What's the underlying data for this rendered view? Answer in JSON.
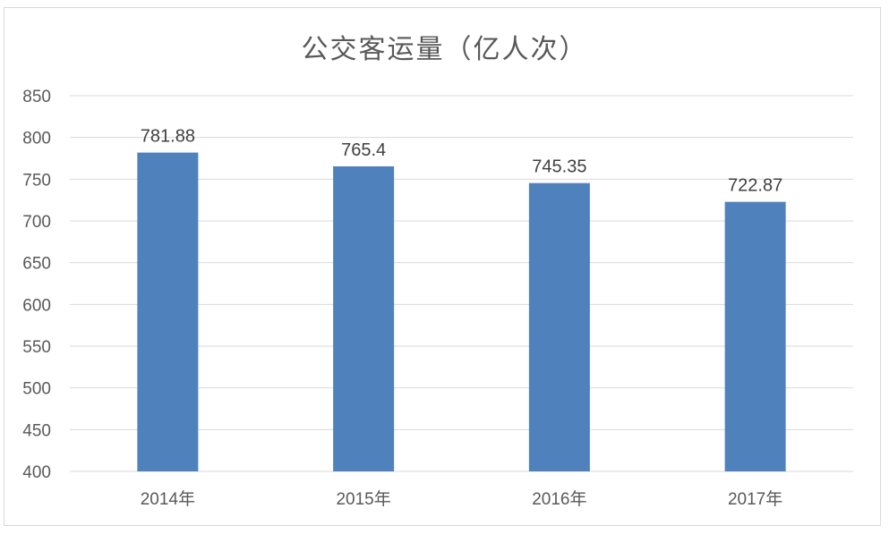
{
  "chart_data": {
    "type": "bar",
    "title": "公交客运量（亿人次）",
    "categories": [
      "2014年",
      "2015年",
      "2016年",
      "2017年"
    ],
    "values": [
      781.88,
      765.4,
      745.35,
      722.87
    ],
    "data_labels": [
      "781.88",
      "765.4",
      "745.35",
      "722.87"
    ],
    "ylim": [
      400,
      850
    ],
    "yticks": [
      400,
      450,
      500,
      550,
      600,
      650,
      700,
      750,
      800,
      850
    ],
    "grid": true,
    "legend": "none",
    "bar_color": "#4f81bd"
  }
}
